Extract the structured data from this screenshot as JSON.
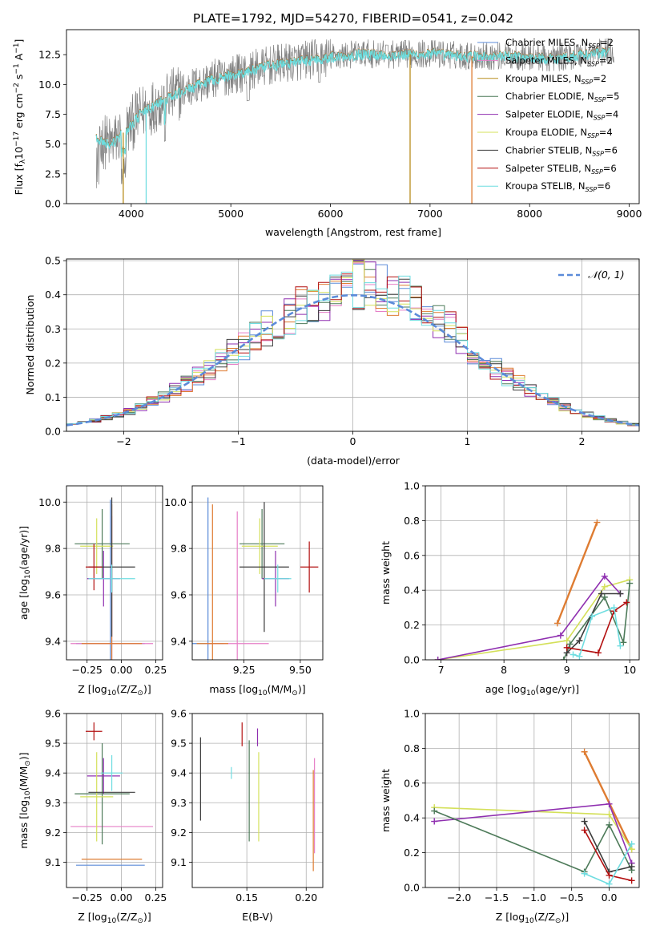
{
  "title": "PLATE=1792, MJD=54270, FIBERID=0541, z=0.042",
  "colors": {
    "chab_miles": "#5b8bd9",
    "salp_miles": "#e67fc7",
    "krou_miles": "#b88d1d",
    "chab_elodie": "#4d7a59",
    "salp_elodie": "#8f2fb0",
    "krou_elodie": "#d4e05a",
    "chab_stelib": "#3d3d3d",
    "salp_stelib": "#b31010",
    "krou_stelib": "#6fdde0",
    "orange": "#de7c32",
    "gray": "#808080"
  },
  "chart_data": [
    {
      "type": "line",
      "id": "spectrum",
      "title": "PLATE=1792, MJD=54270, FIBERID=0541, z=0.042",
      "xlabel": "wavelength [Angstrom, rest frame]",
      "ylabel_parts": [
        "Flux [f",
        "λ",
        "10",
        "−17",
        " erg cm",
        "−2",
        " s",
        "−1",
        " A",
        "−1",
        "]"
      ],
      "xlim": [
        3350,
        9100
      ],
      "ylim": [
        0,
        14.6
      ],
      "xticks": [
        4000,
        5000,
        6000,
        7000,
        8000,
        9000
      ],
      "yticks": [
        0.0,
        2.5,
        5.0,
        7.5,
        10.0,
        12.5
      ],
      "grid": false,
      "legend_placement": "top-right",
      "series": [
        {
          "name": "Chabrier MILES, N",
          "sub": "SSP",
          "suffix": "=2",
          "color": "#5b8bd9"
        },
        {
          "name": "Salpeter MILES, N",
          "sub": "SSP",
          "suffix": "=2",
          "color": "#e67fc7"
        },
        {
          "name": "Kroupa MILES, N",
          "sub": "SSP",
          "suffix": "=2",
          "color": "#b88d1d"
        },
        {
          "name": "Chabrier ELODIE, N",
          "sub": "SSP",
          "suffix": "=5",
          "color": "#4d7a59"
        },
        {
          "name": "Salpeter ELODIE, N",
          "sub": "SSP",
          "suffix": "=4",
          "color": "#8f2fb0"
        },
        {
          "name": "Kroupa ELODIE, N",
          "sub": "SSP",
          "suffix": "=4",
          "color": "#d4e05a"
        },
        {
          "name": "Chabrier STELIB, N",
          "sub": "SSP",
          "suffix": "=6",
          "color": "#3d3d3d"
        },
        {
          "name": "Salpeter STELIB, N",
          "sub": "SSP",
          "suffix": "=6",
          "color": "#b31010"
        },
        {
          "name": "Kroupa STELIB, N",
          "sub": "SSP",
          "suffix": "=6",
          "color": "#6fdde0"
        }
      ],
      "continuum_x": [
        3650,
        3800,
        3950,
        4100,
        4300,
        4500,
        4800,
        5100,
        5400,
        5700,
        6000,
        6300,
        6600,
        7000,
        7400,
        7800,
        8200,
        8600,
        8850
      ],
      "continuum_y": [
        5.5,
        5.0,
        6.2,
        7.6,
        8.6,
        9.4,
        10.4,
        11.0,
        11.6,
        12.0,
        12.3,
        12.6,
        12.5,
        12.6,
        12.4,
        12.4,
        12.2,
        12.6,
        12.8
      ],
      "data_range": [
        3650,
        8850
      ],
      "model_end_x": 8800,
      "drops": [
        {
          "x": 3920,
          "color": "#b88d1d"
        },
        {
          "x": 4150,
          "color": "#6fdde0"
        },
        {
          "x": 6800,
          "color": "#b88d1d"
        },
        {
          "x": 7420,
          "color": "#de7c32"
        }
      ]
    },
    {
      "type": "step",
      "id": "residuals",
      "xlabel": "(data-model)/error",
      "ylabel": "Normed distribution",
      "xlim": [
        -2.5,
        2.5
      ],
      "ylim": [
        0,
        0.505
      ],
      "xticks": [
        -2,
        -1,
        0,
        1,
        2
      ],
      "yticks": [
        0.0,
        0.1,
        0.2,
        0.3,
        0.4,
        0.5
      ],
      "grid": true,
      "legend_placement": "top-right",
      "legend_label": "𝒩(0, 1)",
      "gaussian_color": "#5b8bd9",
      "bin_width": 0.1,
      "bin_start": -2.5
    },
    {
      "type": "scatter",
      "id": "age_vs_Z",
      "xlabel_parts": [
        "Z [log",
        "10",
        "(Z/Z",
        "⊙",
        ")]"
      ],
      "ylabel_parts": [
        "age  [log",
        "10",
        "(age/yr)]"
      ],
      "xlim": [
        -0.4,
        0.3
      ],
      "ylim": [
        9.32,
        10.07
      ],
      "xticks": [
        -0.25,
        0.0,
        0.25
      ],
      "xtick_labels": [
        "−0.25",
        "0.00",
        "0.25"
      ],
      "yticks": [
        9.4,
        9.6,
        9.8,
        10.0
      ],
      "grid": true,
      "points": [
        {
          "x": -0.08,
          "y": 9.39,
          "xerr": 0.25,
          "yerr": 0.62,
          "color": "#5b8bd9"
        },
        {
          "x": -0.07,
          "y": 9.39,
          "xerr": 0.3,
          "yerr": 0.55,
          "color": "#e67fc7"
        },
        {
          "x": -0.07,
          "y": 9.39,
          "xerr": 0.22,
          "yerr": 0.6,
          "color": "#de7c32"
        },
        {
          "x": -0.14,
          "y": 9.82,
          "xerr": 0.2,
          "yerr": 0.15,
          "color": "#4d7a59"
        },
        {
          "x": -0.13,
          "y": 9.67,
          "xerr": 0.12,
          "yerr": 0.12,
          "color": "#8f2fb0"
        },
        {
          "x": -0.18,
          "y": 9.81,
          "xerr": 0.12,
          "yerr": 0.12,
          "color": "#d4e05a"
        },
        {
          "x": -0.07,
          "y": 9.72,
          "xerr": 0.17,
          "yerr": 0.3,
          "color": "#3d3d3d"
        },
        {
          "x": -0.2,
          "y": 9.72,
          "xerr": 0.06,
          "yerr": 0.1,
          "color": "#b31010"
        },
        {
          "x": -0.07,
          "y": 9.67,
          "xerr": 0.17,
          "yerr": 0.06,
          "color": "#6fdde0"
        }
      ]
    },
    {
      "type": "scatter",
      "id": "age_vs_mass",
      "xlabel_parts": [
        "mass [log",
        "10",
        "(M/M",
        "⊙",
        ")]"
      ],
      "xlim": [
        9.02,
        9.6
      ],
      "ylim": [
        9.32,
        10.07
      ],
      "xticks": [
        9.25,
        9.5
      ],
      "xtick_labels": [
        "9.25",
        "9.50"
      ],
      "yticks": [
        9.4,
        9.6,
        9.8,
        10.0
      ],
      "grid": true,
      "points": [
        {
          "x": 9.09,
          "y": 9.39,
          "xerr": 0.07,
          "yerr": 0.63,
          "color": "#5b8bd9"
        },
        {
          "x": 9.22,
          "y": 9.39,
          "xerr": 0.14,
          "yerr": 0.57,
          "color": "#e67fc7"
        },
        {
          "x": 9.11,
          "y": 9.39,
          "xerr": 0.07,
          "yerr": 0.6,
          "color": "#de7c32"
        },
        {
          "x": 9.33,
          "y": 9.82,
          "xerr": 0.1,
          "yerr": 0.15,
          "color": "#4d7a59"
        },
        {
          "x": 9.39,
          "y": 9.67,
          "xerr": 0.06,
          "yerr": 0.12,
          "color": "#8f2fb0"
        },
        {
          "x": 9.32,
          "y": 9.81,
          "xerr": 0.08,
          "yerr": 0.12,
          "color": "#d4e05a"
        },
        {
          "x": 9.34,
          "y": 9.72,
          "xerr": 0.11,
          "yerr": 0.28,
          "color": "#3d3d3d"
        },
        {
          "x": 9.54,
          "y": 9.72,
          "xerr": 0.04,
          "yerr": 0.11,
          "color": "#b31010"
        },
        {
          "x": 9.4,
          "y": 9.67,
          "xerr": 0.06,
          "yerr": 0.06,
          "color": "#6fdde0"
        }
      ]
    },
    {
      "type": "line",
      "id": "mass_weight_vs_age",
      "xlabel_parts": [
        "age  [log",
        "10",
        "(age/yr)]"
      ],
      "ylabel": "mass weight",
      "xlim": [
        6.75,
        10.15
      ],
      "ylim": [
        0,
        1.0
      ],
      "xticks": [
        7,
        8,
        9,
        10
      ],
      "yticks": [
        0.0,
        0.2,
        0.4,
        0.6,
        0.8,
        1.0
      ],
      "grid": true,
      "series": [
        {
          "color": "#de7c32",
          "x": [
            8.85,
            9.48
          ],
          "y": [
            0.21,
            0.79
          ],
          "width": 2.4
        },
        {
          "color": "#d4e05a",
          "x": [
            6.95,
            9.0,
            9.6,
            10.0
          ],
          "y": [
            0.0,
            0.11,
            0.42,
            0.46
          ]
        },
        {
          "color": "#8f2fb0",
          "x": [
            6.95,
            8.9,
            9.6,
            9.85
          ],
          "y": [
            0.0,
            0.14,
            0.48,
            0.38
          ]
        },
        {
          "color": "#4d7a59",
          "x": [
            8.95,
            9.05,
            9.6,
            9.9,
            10.0
          ],
          "y": [
            0.0,
            0.09,
            0.36,
            0.1,
            0.44
          ]
        },
        {
          "color": "#3d3d3d",
          "x": [
            9.0,
            9.2,
            9.55,
            9.85
          ],
          "y": [
            0.04,
            0.11,
            0.38,
            0.38
          ]
        },
        {
          "color": "#b31010",
          "x": [
            9.0,
            9.5,
            9.75,
            9.95
          ],
          "y": [
            0.07,
            0.04,
            0.28,
            0.33
          ]
        },
        {
          "color": "#6fdde0",
          "x": [
            9.1,
            9.2,
            9.4,
            9.75,
            9.85
          ],
          "y": [
            0.03,
            0.02,
            0.25,
            0.3,
            0.08
          ]
        }
      ]
    },
    {
      "type": "scatter",
      "id": "mass_vs_Z",
      "xlabel_parts": [
        "Z [log",
        "10",
        "(Z/Z",
        "⊙",
        ")]"
      ],
      "ylabel_parts": [
        "mass [log",
        "10",
        "(M/M",
        "⊙",
        ")]"
      ],
      "xlim": [
        -0.4,
        0.3
      ],
      "ylim": [
        9.015,
        9.6
      ],
      "xticks": [
        -0.25,
        0.0,
        0.25
      ],
      "xtick_labels": [
        "−0.25",
        "0.00",
        "0.25"
      ],
      "yticks": [
        9.1,
        9.2,
        9.3,
        9.4,
        9.5,
        9.6
      ],
      "grid": true,
      "points": [
        {
          "x": -0.08,
          "y": 9.09,
          "xerr": 0.25,
          "yerr": 0.0,
          "color": "#5b8bd9"
        },
        {
          "x": -0.07,
          "y": 9.22,
          "xerr": 0.3,
          "yerr": 0.0,
          "color": "#e67fc7"
        },
        {
          "x": -0.07,
          "y": 9.11,
          "xerr": 0.22,
          "yerr": 0.0,
          "color": "#de7c32"
        },
        {
          "x": -0.14,
          "y": 9.33,
          "xerr": 0.2,
          "yerr": 0.17,
          "color": "#4d7a59"
        },
        {
          "x": -0.13,
          "y": 9.39,
          "xerr": 0.12,
          "yerr": 0.06,
          "color": "#8f2fb0"
        },
        {
          "x": -0.18,
          "y": 9.32,
          "xerr": 0.12,
          "yerr": 0.15,
          "color": "#d4e05a"
        },
        {
          "x": -0.07,
          "y": 9.335,
          "xerr": 0.17,
          "yerr": 0.0,
          "color": "#3d3d3d"
        },
        {
          "x": -0.2,
          "y": 9.54,
          "xerr": 0.06,
          "yerr": 0.03,
          "color": "#b31010"
        },
        {
          "x": -0.07,
          "y": 9.4,
          "xerr": 0.08,
          "yerr": 0.06,
          "color": "#6fdde0"
        }
      ]
    },
    {
      "type": "scatter",
      "id": "mass_vs_ebv",
      "xlabel": "E(B-V)",
      "xlim": [
        0.104,
        0.214
      ],
      "ylim": [
        9.015,
        9.6
      ],
      "xticks": [
        0.15,
        0.2
      ],
      "xtick_labels": [
        "0.15",
        "0.20"
      ],
      "yticks": [
        9.1,
        9.2,
        9.3,
        9.4,
        9.5,
        9.6
      ],
      "grid": true,
      "points": [
        {
          "x": 0.111,
          "y": 9.38,
          "yerr": 0.14,
          "color": "#3d3d3d"
        },
        {
          "x": 0.137,
          "y": 9.4,
          "yerr": 0.02,
          "color": "#6fdde0"
        },
        {
          "x": 0.146,
          "y": 9.53,
          "yerr": 0.04,
          "color": "#b31010"
        },
        {
          "x": 0.152,
          "y": 9.34,
          "yerr": 0.17,
          "color": "#4d7a59"
        },
        {
          "x": 0.159,
          "y": 9.52,
          "yerr": 0.03,
          "color": "#8f2fb0"
        },
        {
          "x": 0.16,
          "y": 9.32,
          "yerr": 0.15,
          "color": "#d4e05a"
        },
        {
          "x": 0.206,
          "y": 9.24,
          "yerr": 0.17,
          "color": "#de7c32"
        },
        {
          "x": 0.207,
          "y": 9.29,
          "yerr": 0.16,
          "color": "#e67fc7"
        }
      ]
    },
    {
      "type": "line",
      "id": "mass_weight_vs_Z",
      "xlabel_parts": [
        "Z [log",
        "10",
        "(Z/Z",
        "⊙",
        ")]"
      ],
      "ylabel": "mass weight",
      "xlim": [
        -2.45,
        0.4
      ],
      "ylim": [
        0,
        1.0
      ],
      "xticks": [
        -2.0,
        -1.5,
        -1.0,
        -0.5,
        0.0
      ],
      "xtick_labels": [
        "−2.0",
        "−1.5",
        "−1.0",
        "−0.5",
        "0.0"
      ],
      "yticks": [
        0.0,
        0.2,
        0.4,
        0.6,
        0.8,
        1.0
      ],
      "grid": true,
      "series": [
        {
          "color": "#de7c32",
          "x": [
            -0.33,
            0.3
          ],
          "y": [
            0.78,
            0.22
          ],
          "width": 2.4
        },
        {
          "color": "#d4e05a",
          "x": [
            -2.33,
            0.0,
            0.3
          ],
          "y": [
            0.46,
            0.42,
            0.22
          ]
        },
        {
          "color": "#8f2fb0",
          "x": [
            -2.33,
            0.0,
            0.3
          ],
          "y": [
            0.38,
            0.48,
            0.14
          ]
        },
        {
          "color": "#4d7a59",
          "x": [
            -2.33,
            -0.33,
            0.0,
            0.3
          ],
          "y": [
            0.44,
            0.09,
            0.36,
            0.1
          ]
        },
        {
          "color": "#3d3d3d",
          "x": [
            -0.33,
            0.0,
            0.3
          ],
          "y": [
            0.38,
            0.09,
            0.12
          ]
        },
        {
          "color": "#b31010",
          "x": [
            -0.33,
            0.0,
            0.3
          ],
          "y": [
            0.33,
            0.07,
            0.04
          ]
        },
        {
          "color": "#6fdde0",
          "x": [
            -0.33,
            0.0,
            0.3
          ],
          "y": [
            0.08,
            0.02,
            0.25
          ]
        }
      ]
    }
  ]
}
